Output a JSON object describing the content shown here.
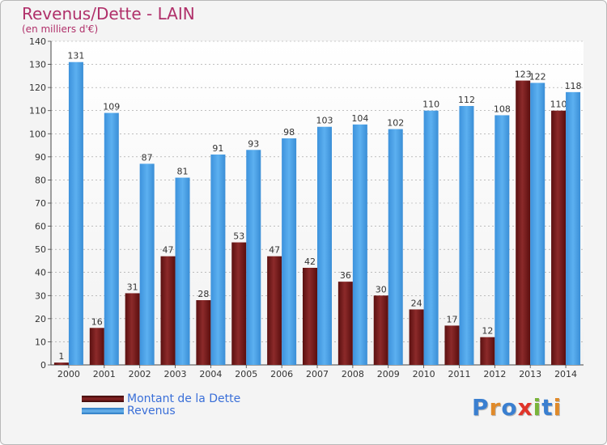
{
  "title": "Revenus/Dette - LAIN",
  "subtitle": "(en milliers d'€)",
  "colors": {
    "dette": "#7a1c1c",
    "revenus": "#4a9fe0",
    "title": "#b0306a",
    "legend_text": "#3a6fd8"
  },
  "legend": [
    {
      "label": "Montant de la Dette",
      "color": "#6b1414"
    },
    {
      "label": "Revenus",
      "color": "#4a9fe0"
    }
  ],
  "logo": {
    "text": "Proxiti",
    "letters": [
      "P",
      "r",
      "o",
      "x",
      "i",
      "t",
      "i"
    ],
    "letter_colors": [
      "#3a7fd0",
      "#e08a2a",
      "#3a7fd0",
      "#e0342a",
      "#79b43a",
      "#3a7fd0",
      "#e08a2a"
    ]
  },
  "chart_data": {
    "type": "bar",
    "title": "Revenus/Dette - LAIN",
    "subtitle": "(en milliers d'€)",
    "categories": [
      "2000",
      "2001",
      "2002",
      "2003",
      "2004",
      "2005",
      "2006",
      "2007",
      "2008",
      "2009",
      "2010",
      "2011",
      "2012",
      "2013",
      "2014"
    ],
    "series": [
      {
        "name": "Montant de la Dette",
        "values": [
          1,
          16,
          31,
          47,
          28,
          53,
          47,
          42,
          36,
          30,
          24,
          17,
          12,
          123,
          110
        ]
      },
      {
        "name": "Revenus",
        "values": [
          131,
          109,
          87,
          81,
          91,
          93,
          98,
          103,
          104,
          102,
          110,
          112,
          108,
          122,
          118
        ]
      }
    ],
    "ylim": [
      0,
      140
    ],
    "yticks": [
      0,
      10,
      20,
      30,
      40,
      50,
      60,
      70,
      80,
      90,
      100,
      110,
      120,
      130,
      140
    ],
    "grid": true,
    "legend_position": "bottom-left"
  }
}
